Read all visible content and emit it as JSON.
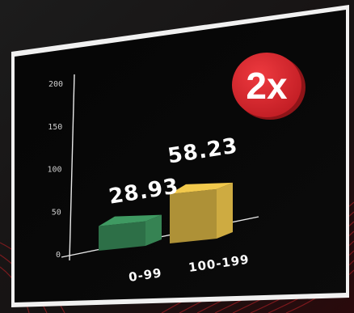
{
  "chart_data": {
    "type": "bar",
    "categories": [
      "0-99",
      "100-199"
    ],
    "values": [
      28.93,
      58.23
    ],
    "value_labels": [
      "28.93",
      "58.23"
    ],
    "yticks": [
      0,
      50,
      100,
      150,
      200
    ],
    "ylim": [
      0,
      200
    ],
    "colors": [
      "#3f9a62",
      "#f2c94c"
    ],
    "badge": "2x",
    "badge_color": "#d8232a"
  }
}
